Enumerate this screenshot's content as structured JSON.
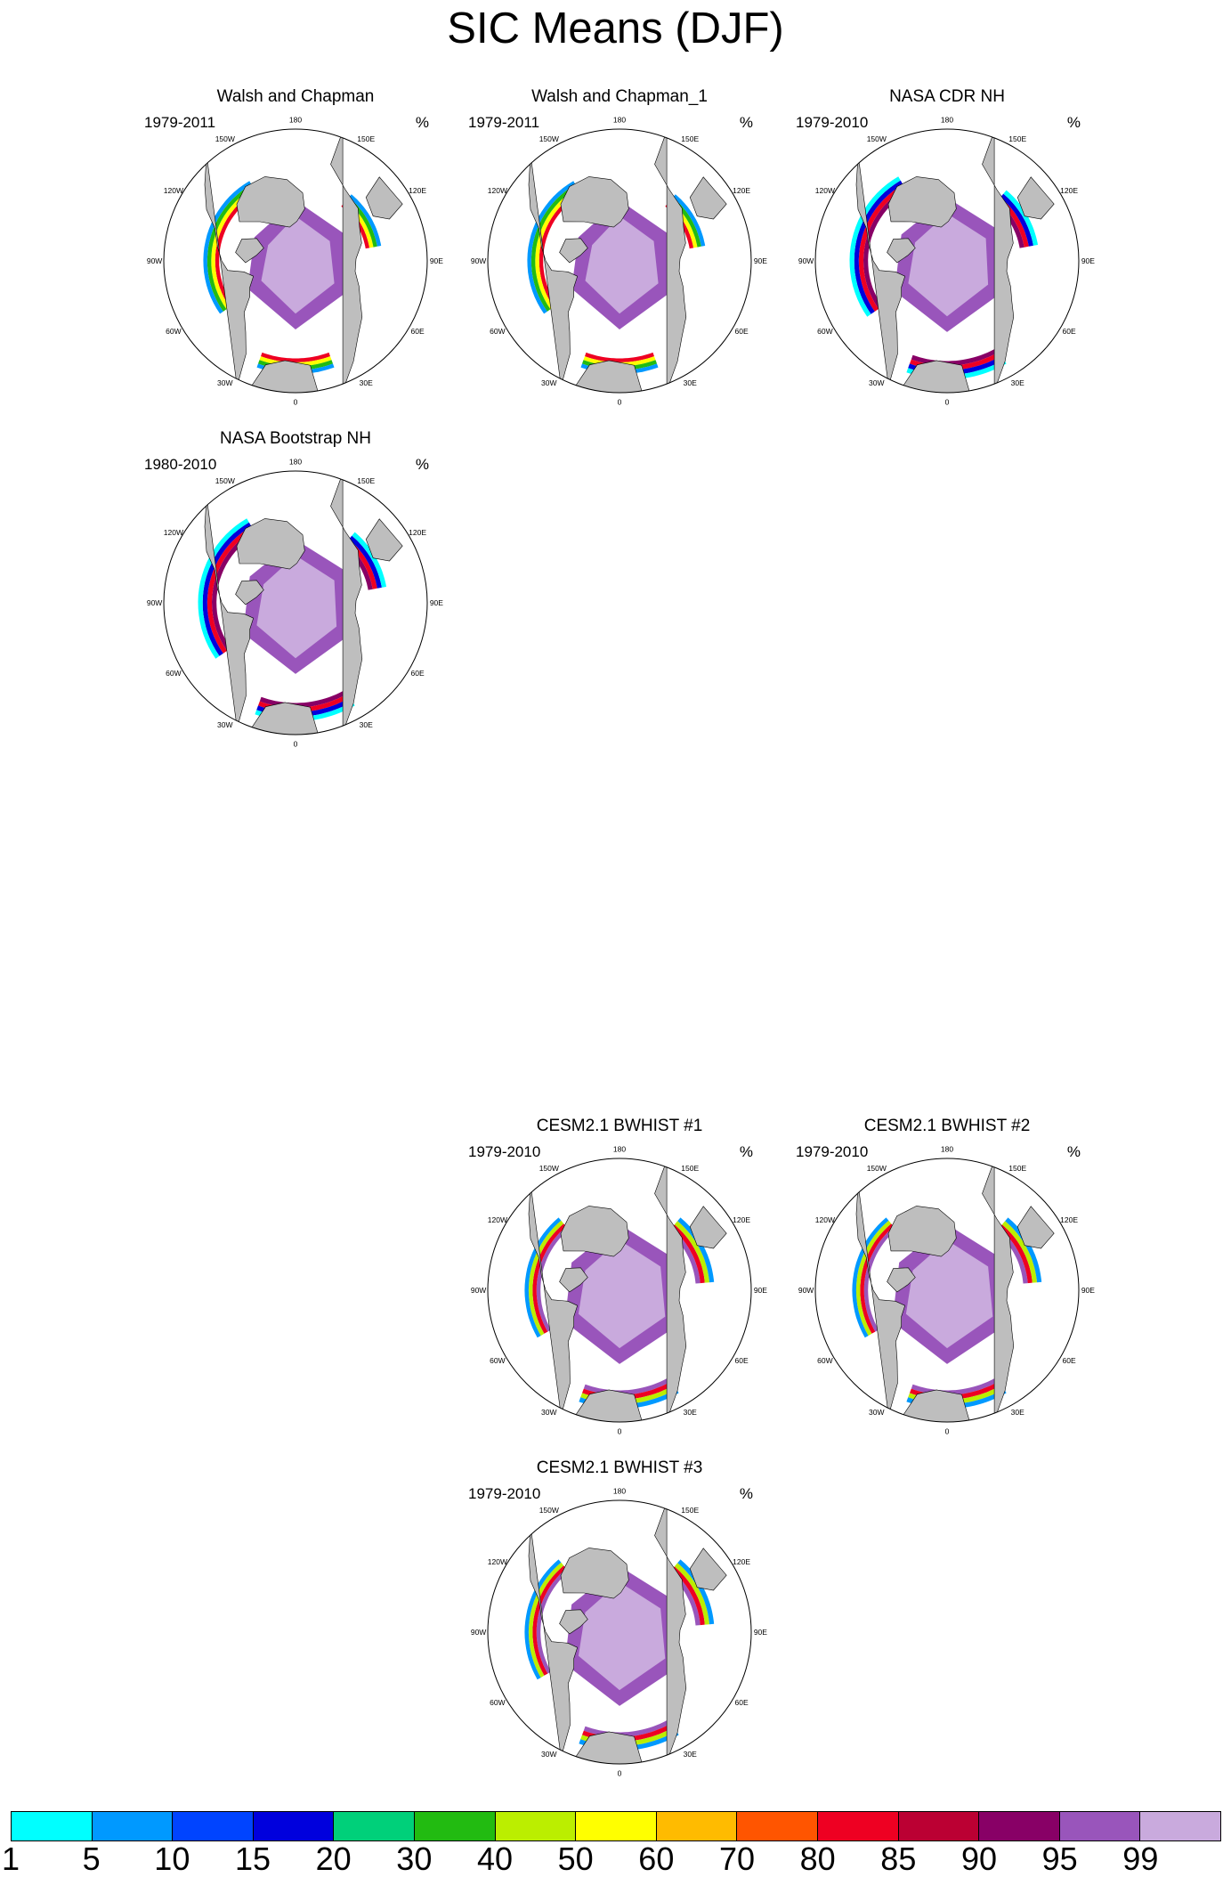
{
  "title": "SIC Means (DJF)",
  "units": "%",
  "longitude_labels": [
    "180",
    "150E",
    "120E",
    "90E",
    "60E",
    "30E",
    "0",
    "30W",
    "60W",
    "90W",
    "120W",
    "150W"
  ],
  "panels": [
    {
      "id": "walsh",
      "title": "Walsh and Chapman",
      "period": "1979-2011"
    },
    {
      "id": "walsh1",
      "title": "Walsh and Chapman_1",
      "period": "1979-2011"
    },
    {
      "id": "cdr",
      "title": "NASA CDR NH",
      "period": "1979-2010"
    },
    {
      "id": "bootstrap",
      "title": "NASA Bootstrap NH",
      "period": "1980-2010"
    },
    {
      "id": "bwhist1",
      "title": "CESM2.1 BWHIST #1",
      "period": "1979-2010"
    },
    {
      "id": "bwhist2",
      "title": "CESM2.1 BWHIST #2",
      "period": "1979-2010"
    },
    {
      "id": "bwhist3",
      "title": "CESM2.1 BWHIST #3",
      "period": "1979-2010"
    }
  ],
  "colorbar": {
    "labels": [
      "1",
      "5",
      "10",
      "15",
      "20",
      "30",
      "40",
      "50",
      "60",
      "70",
      "80",
      "85",
      "90",
      "95",
      "99"
    ],
    "colors": [
      "#00ffff",
      "#0099ff",
      "#0044ff",
      "#0000dd",
      "#00d07a",
      "#22bb11",
      "#bbee00",
      "#ffff00",
      "#ffbb00",
      "#ff5500",
      "#ee0022",
      "#bb0033",
      "#880066",
      "#9955bb",
      "#c9aadd"
    ]
  },
  "colors": {
    "land": "#bebebe",
    "ocean": "#ffffff",
    "coast": "#000000"
  }
}
